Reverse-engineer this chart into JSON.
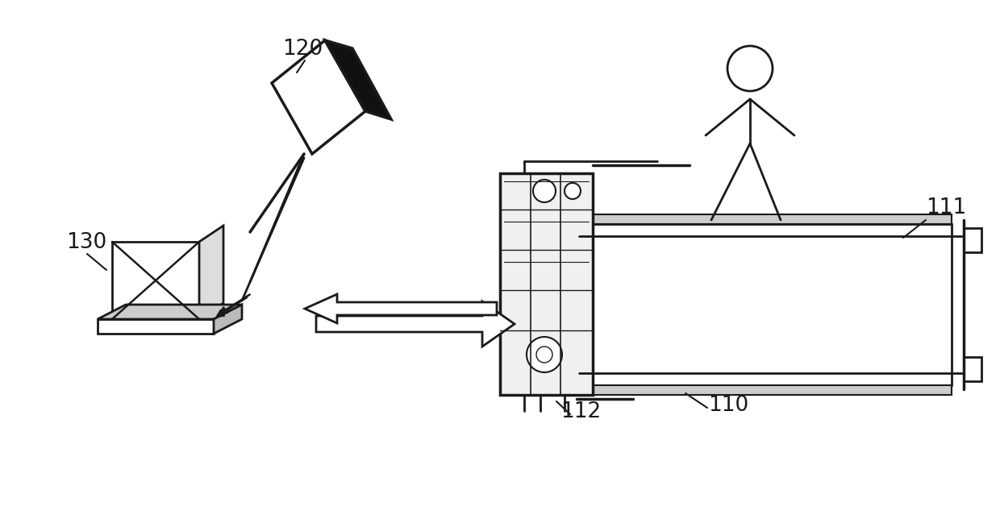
{
  "bg_color": "#ffffff",
  "line_color": "#1a1a1a",
  "dark_color": "#111111",
  "gray_color": "#aaaaaa",
  "label_120": "120",
  "label_130": "130",
  "label_110": "110",
  "label_111": "111",
  "label_112": "112",
  "figsize": [
    12.4,
    6.44
  ],
  "dpi": 100
}
